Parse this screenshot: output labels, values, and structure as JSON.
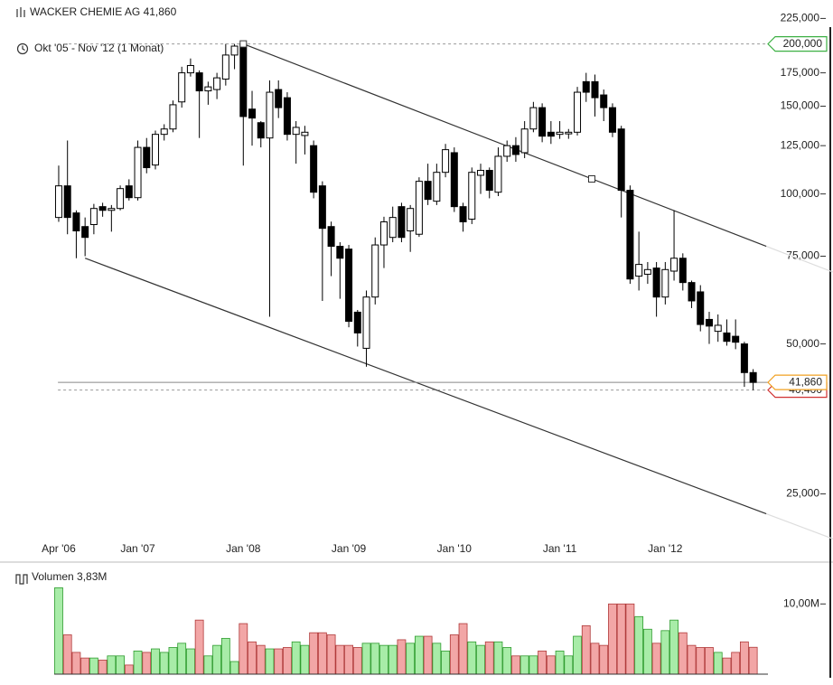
{
  "chart_data": {
    "type": "candlestick",
    "title": "WACKER CHEMIE AG 41,860",
    "subtitle": "Okt '05 - Nov '12 (1 Monat)",
    "categories": [
      "Apr '06",
      null,
      null,
      null,
      null,
      null,
      null,
      null,
      null,
      "Jan '07",
      null,
      null,
      null,
      null,
      null,
      null,
      null,
      null,
      null,
      null,
      null,
      "Jan '08",
      null,
      null,
      null,
      null,
      null,
      null,
      null,
      null,
      null,
      null,
      null,
      "Jan '09",
      null,
      null,
      null,
      null,
      null,
      null,
      null,
      null,
      null,
      null,
      null,
      "Jan '10",
      null,
      null,
      null,
      null,
      null,
      null,
      null,
      null,
      null,
      null,
      null,
      "Jan '11",
      null,
      null,
      null,
      null,
      null,
      null,
      null,
      null,
      null,
      null,
      null,
      "Jan '12",
      null,
      null,
      null,
      null,
      null,
      null,
      null,
      null,
      null,
      null
    ],
    "open": [
      89700,
      103800,
      91600,
      86000,
      86800,
      94300,
      92700,
      93500,
      103800,
      98300,
      124000,
      114300,
      131700,
      135000,
      153000,
      175000,
      175000,
      161000,
      162000,
      170000,
      190000,
      200000,
      148000,
      139000,
      129500,
      162000,
      156000,
      131700,
      131000,
      125000,
      103800,
      86000,
      78500,
      77500,
      57900,
      49000,
      62100,
      79000,
      81800,
      94300,
      84300,
      83000,
      106000,
      96700,
      110500,
      121000,
      94300,
      89000,
      109000,
      111500,
      100800,
      119000,
      125000,
      121000,
      135000,
      149000,
      133000,
      131700,
      132000,
      133000,
      168000,
      168000,
      158000,
      149000,
      135000,
      101700,
      68400,
      69000,
      71000,
      62100,
      70000,
      74300,
      66400,
      63600,
      56000,
      53000,
      52600,
      51800,
      50000,
      43800
    ],
    "high": [
      114000,
      128000,
      92700,
      89700,
      95500,
      96000,
      95000,
      104000,
      107000,
      128000,
      129500,
      134000,
      138000,
      154000,
      180000,
      187000,
      177000,
      168000,
      175000,
      200000,
      200000,
      201000,
      161000,
      140000,
      169000,
      169000,
      160000,
      140000,
      137000,
      128000,
      106000,
      88000,
      80000,
      79000,
      58500,
      64000,
      81800,
      90000,
      94300,
      96000,
      95000,
      108000,
      115000,
      115000,
      126000,
      124000,
      96000,
      113000,
      115000,
      113000,
      124000,
      128000,
      130000,
      140000,
      153000,
      152000,
      140000,
      140000,
      135000,
      164000,
      175000,
      173600,
      162000,
      152000,
      137000,
      104000,
      84000,
      73000,
      73000,
      73000,
      92700,
      76000,
      67000,
      65600,
      58000,
      57300,
      56000,
      56000,
      50500,
      44500
    ],
    "low": [
      87900,
      83000,
      74300,
      75000,
      83000,
      90000,
      84000,
      92700,
      97000,
      97000,
      110000,
      112000,
      128000,
      133000,
      149000,
      172000,
      129500,
      151000,
      155000,
      165000,
      178000,
      114000,
      125000,
      124000,
      56700,
      142000,
      128000,
      115000,
      120000,
      98000,
      61000,
      68400,
      61600,
      54000,
      49400,
      45000,
      60000,
      71000,
      80000,
      80000,
      76500,
      82000,
      95000,
      95000,
      108000,
      92000,
      84000,
      87000,
      100000,
      98000,
      99000,
      116000,
      116000,
      118000,
      133000,
      127000,
      126000,
      129000,
      129000,
      131000,
      153000,
      143000,
      140000,
      130000,
      89700,
      66000,
      64000,
      66000,
      56700,
      60000,
      67000,
      64000,
      59000,
      53000,
      50000,
      50500,
      49600,
      48800,
      41000,
      40400
    ],
    "close": [
      103800,
      89700,
      84300,
      81800,
      93500,
      92700,
      93500,
      102500,
      98300,
      124000,
      112900,
      131700,
      135000,
      151000,
      175000,
      181000,
      161000,
      164000,
      171000,
      190000,
      198000,
      143000,
      142000,
      129500,
      160000,
      149000,
      131700,
      136000,
      133000,
      100800,
      85300,
      78500,
      74300,
      55500,
      52600,
      62100,
      79000,
      87900,
      89700,
      81800,
      93500,
      106000,
      97500,
      110500,
      122700,
      94300,
      87900,
      110500,
      111500,
      101700,
      119000,
      125000,
      120000,
      135000,
      149000,
      130600,
      130600,
      133000,
      133000,
      160000,
      160000,
      156000,
      149000,
      133000,
      101700,
      67500,
      72200,
      70500,
      62100,
      70500,
      74300,
      66400,
      61000,
      54700,
      54300,
      54500,
      50600,
      50400,
      43800,
      41860
    ],
    "up_color": "#ffffff",
    "down_color": "#000000",
    "log_scale": true,
    "ylim": [
      20000,
      235000
    ],
    "yticks": [
      {
        "value": 225000,
        "label": "225,000"
      },
      {
        "value": 200000,
        "label": "200,000"
      },
      {
        "value": 175000,
        "label": "175,000"
      },
      {
        "value": 150000,
        "label": "150,000"
      },
      {
        "value": 125000,
        "label": "125,000"
      },
      {
        "value": 100000,
        "label": "100,000"
      },
      {
        "value": 75000,
        "label": "75,000"
      },
      {
        "value": 50000,
        "label": "50,000"
      },
      {
        "value": 25000,
        "label": "25,000"
      }
    ],
    "trendlines": [
      {
        "x": [
          21,
          80.5
        ],
        "values": [
          200000,
          78500
        ],
        "color": "#333333"
      },
      {
        "x": [
          3,
          80.5
        ],
        "values": [
          74300,
          22800
        ],
        "color": "#333333"
      }
    ],
    "price_lines": [
      {
        "value": 200000,
        "label": "200,000",
        "color": "#3cb043",
        "style": "dashed"
      },
      {
        "value": 40400,
        "label": "40,400",
        "color": "#d03030",
        "style": "dashed"
      },
      {
        "value": 41860,
        "label": "41,860",
        "color": "#f0a020",
        "style": "solid"
      }
    ],
    "volume": {
      "title": "Volumen 3,83M",
      "values": [
        12.3,
        5.6,
        3.1,
        2.3,
        2.3,
        2.0,
        2.6,
        2.6,
        1.3,
        3.3,
        3.1,
        3.6,
        3.1,
        3.8,
        4.4,
        3.6,
        7.7,
        2.6,
        4.1,
        5.1,
        1.8,
        7.2,
        4.6,
        4.1,
        3.6,
        3.6,
        3.8,
        4.6,
        4.1,
        5.9,
        5.9,
        5.6,
        4.1,
        4.1,
        3.8,
        4.4,
        4.4,
        4.1,
        4.1,
        4.9,
        4.4,
        5.4,
        5.4,
        4.4,
        3.3,
        5.6,
        7.2,
        4.6,
        4.1,
        4.6,
        4.6,
        3.8,
        2.6,
        2.6,
        2.6,
        3.3,
        2.6,
        3.3,
        2.6,
        5.4,
        6.9,
        4.4,
        4.1,
        10,
        10,
        10,
        8.2,
        6.4,
        4.4,
        6.2,
        7.7,
        5.9,
        4.1,
        3.8,
        3.8,
        3.1,
        2.3,
        3.1,
        4.6,
        3.83
      ],
      "ylim": [
        0,
        13
      ],
      "yticks": [
        {
          "value": 10,
          "label": "10,00M"
        }
      ],
      "up_color": "#a8eca8",
      "down_color": "#f2a6a6"
    }
  }
}
